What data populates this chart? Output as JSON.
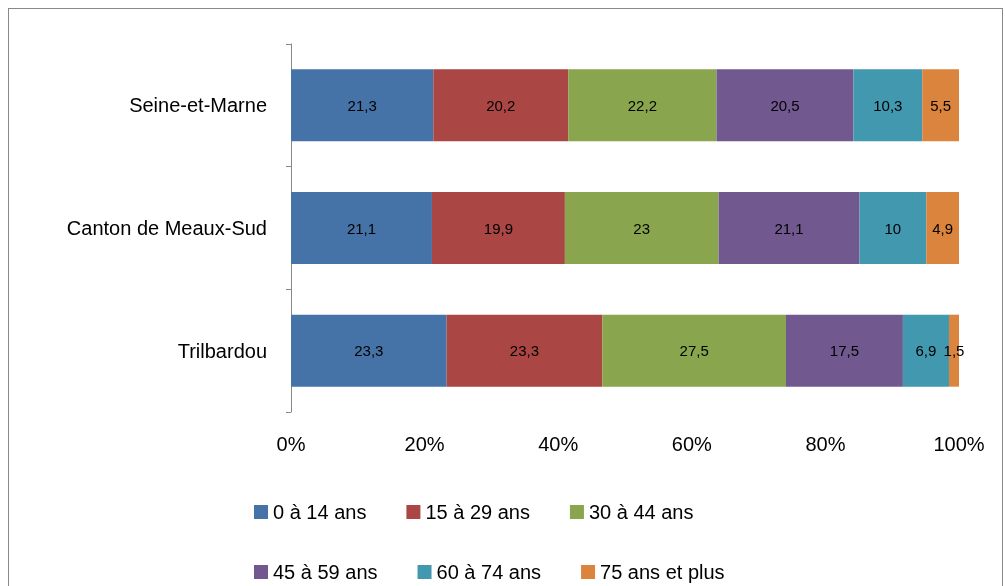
{
  "chart_data": {
    "type": "bar",
    "orientation": "horizontal",
    "stacked": true,
    "categories": [
      "Seine-et-Marne",
      "Canton de Meaux-Sud",
      "Trilbardou"
    ],
    "series": [
      {
        "name": "0 à 14 ans",
        "color": "#4572a7",
        "values": [
          21.3,
          21.1,
          23.3
        ],
        "value_labels": [
          "21,3",
          "21,1",
          "23,3"
        ]
      },
      {
        "name": "15 à 29 ans",
        "color": "#aa4643",
        "values": [
          20.2,
          19.9,
          23.3
        ],
        "value_labels": [
          "20,2",
          "19,9",
          "23,3"
        ]
      },
      {
        "name": "30 à 44 ans",
        "color": "#89a54e",
        "values": [
          22.2,
          23,
          27.5
        ],
        "value_labels": [
          "22,2",
          "23",
          "27,5"
        ]
      },
      {
        "name": "45 à 59 ans",
        "color": "#71588f",
        "values": [
          20.5,
          21.1,
          17.5
        ],
        "value_labels": [
          "20,5",
          "21,1",
          "17,5"
        ]
      },
      {
        "name": "60 à 74 ans",
        "color": "#4198af",
        "values": [
          10.3,
          10,
          6.9
        ],
        "value_labels": [
          "10,3",
          "10",
          "6,9"
        ]
      },
      {
        "name": "75 ans et plus",
        "color": "#db843d",
        "values": [
          5.5,
          4.9,
          1.5
        ],
        "value_labels": [
          "5,5",
          "4,9",
          "1,5"
        ]
      }
    ],
    "xlim": [
      0,
      100
    ],
    "xticks": [
      {
        "value": 0,
        "label": "0%"
      },
      {
        "value": 20,
        "label": "20%"
      },
      {
        "value": 40,
        "label": "40%"
      },
      {
        "value": 60,
        "label": "60%"
      },
      {
        "value": 80,
        "label": "80%"
      },
      {
        "value": 100,
        "label": "100%"
      }
    ],
    "grid": false,
    "legend": "bottom"
  }
}
